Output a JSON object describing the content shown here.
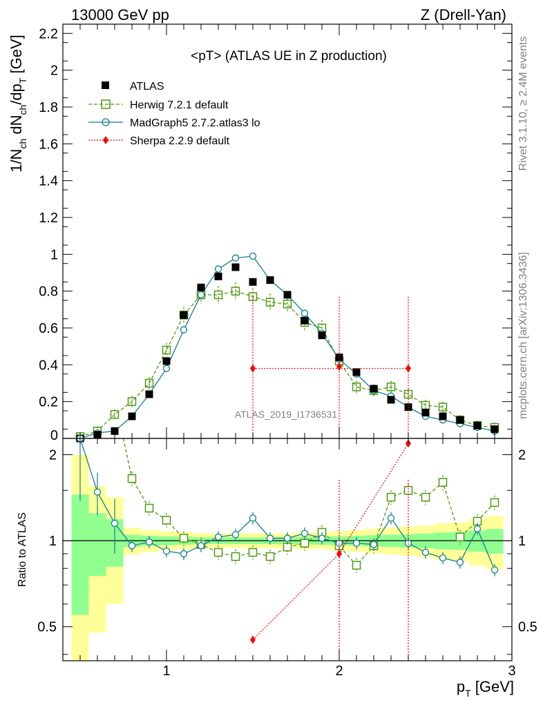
{
  "header": {
    "left": "13000 GeV pp",
    "right": "Z (Drell-Yan)"
  },
  "side": {
    "rivet": "Rivet 3.1.10, ≥ 2.4M events",
    "source": "mcplots.cern.ch [arXiv:1306.3436]"
  },
  "watermark": "ATLAS_2019_I1736531",
  "colors": {
    "atlas": "#000000",
    "herwig": "#4c9a0e",
    "madgraph": "#0f7f8f",
    "sherpa": "#ff0000",
    "band_inner": "#90ff90",
    "band_outer": "#ffff99"
  },
  "chart_data": [
    {
      "panel": "main",
      "type": "scatter",
      "title": "<pT> (ATLAS UE in Z production)",
      "ylabel": "1/N_ch dN_ch/dp_T [GeV]",
      "xlim": [
        0.4,
        3.0
      ],
      "ylim": [
        0,
        2.25
      ],
      "yticks": [
        "0",
        "0.2",
        "0.4",
        "0.6",
        "0.8",
        "1",
        "1.2",
        "1.4",
        "1.6",
        "1.8",
        "2",
        "2.2"
      ],
      "legend": [
        "ATLAS",
        "Herwig 7.2.1 default",
        "MadGraph5 2.7.2.atlas3 lo",
        "Sherpa 2.2.9 default"
      ],
      "series": [
        {
          "name": "ATLAS",
          "x": [
            0.5,
            0.6,
            0.7,
            0.8,
            0.9,
            1.0,
            1.1,
            1.2,
            1.3,
            1.4,
            1.5,
            1.6,
            1.7,
            1.8,
            1.9,
            2.0,
            2.1,
            2.2,
            2.3,
            2.4,
            2.5,
            2.6,
            2.7,
            2.8,
            2.9
          ],
          "y": [
            0.0,
            0.02,
            0.04,
            0.12,
            0.24,
            0.42,
            0.67,
            0.82,
            0.88,
            0.93,
            0.85,
            0.86,
            0.78,
            0.64,
            0.56,
            0.44,
            0.36,
            0.27,
            0.21,
            0.17,
            0.14,
            0.12,
            0.1,
            0.07,
            0.05
          ]
        },
        {
          "name": "Herwig 7.2.1 default",
          "x": [
            0.5,
            0.6,
            0.7,
            0.8,
            0.9,
            1.0,
            1.1,
            1.2,
            1.3,
            1.4,
            1.5,
            1.6,
            1.7,
            1.8,
            1.9,
            2.0,
            2.1,
            2.2,
            2.3,
            2.4,
            2.5,
            2.6,
            2.7,
            2.8,
            2.9
          ],
          "y": [
            0.01,
            0.04,
            0.13,
            0.2,
            0.3,
            0.48,
            0.67,
            0.78,
            0.78,
            0.8,
            0.77,
            0.74,
            0.73,
            0.63,
            0.6,
            0.42,
            0.28,
            0.26,
            0.28,
            0.24,
            0.18,
            0.17,
            0.1,
            0.07,
            0.06
          ]
        },
        {
          "name": "MadGraph5 2.7.2.atlas3 lo",
          "x": [
            0.5,
            0.6,
            0.7,
            0.8,
            0.9,
            1.0,
            1.1,
            1.2,
            1.3,
            1.4,
            1.5,
            1.6,
            1.7,
            1.8,
            1.9,
            2.0,
            2.1,
            2.2,
            2.3,
            2.4,
            2.5,
            2.6,
            2.7,
            2.8,
            2.9
          ],
          "y": [
            0.0,
            0.03,
            0.04,
            0.12,
            0.24,
            0.38,
            0.59,
            0.78,
            0.92,
            0.98,
            0.99,
            0.86,
            0.78,
            0.68,
            0.57,
            0.43,
            0.35,
            0.26,
            0.23,
            0.17,
            0.12,
            0.1,
            0.08,
            0.06,
            0.04
          ]
        },
        {
          "name": "Sherpa 2.2.9 default",
          "x": [
            1.5,
            2.0,
            2.4
          ],
          "y": [
            0.38,
            0.39,
            0.38
          ],
          "xerr": [
            0.5,
            0.4,
            0.4
          ]
        }
      ]
    },
    {
      "panel": "ratio",
      "type": "line",
      "ylabel": "Ratio to ATLAS",
      "xlabel": "p_T [GeV]",
      "xlim": [
        0.4,
        3.0
      ],
      "ylim": [
        0.38,
        2.28
      ],
      "log_y": true,
      "xticks": [
        "1",
        "2",
        "3"
      ],
      "yticks": [
        "0.5",
        "1",
        "2"
      ],
      "series": [
        {
          "name": "Herwig 7.2.1 default",
          "x": [
            0.8,
            0.9,
            1.0,
            1.1,
            1.2,
            1.3,
            1.4,
            1.5,
            1.6,
            1.7,
            1.8,
            1.9,
            2.0,
            2.1,
            2.2,
            2.3,
            2.4,
            2.5,
            2.6,
            2.7,
            2.8,
            2.9
          ],
          "y": [
            1.65,
            1.3,
            1.18,
            1.02,
            0.97,
            0.91,
            0.88,
            0.91,
            0.88,
            0.95,
            0.98,
            1.07,
            0.96,
            0.82,
            0.96,
            1.42,
            1.5,
            1.42,
            1.6,
            1.03,
            1.17,
            1.36
          ]
        },
        {
          "name": "MadGraph5 2.7.2.atlas3 lo",
          "x": [
            0.5,
            0.6,
            0.7,
            0.8,
            0.9,
            1.0,
            1.1,
            1.2,
            1.3,
            1.4,
            1.5,
            1.6,
            1.7,
            1.8,
            1.9,
            2.0,
            2.1,
            2.2,
            2.3,
            2.4,
            2.5,
            2.6,
            2.7,
            2.8,
            2.9
          ],
          "y": [
            2.28,
            1.48,
            1.15,
            0.96,
            0.99,
            0.92,
            0.9,
            0.96,
            1.03,
            1.05,
            1.2,
            1.02,
            1.02,
            1.06,
            1.02,
            0.98,
            0.98,
            0.97,
            1.2,
            0.98,
            0.91,
            0.87,
            0.84,
            1.1,
            0.79
          ]
        },
        {
          "name": "Sherpa 2.2.9 default",
          "x": [
            1.5,
            2.0,
            2.4
          ],
          "y": [
            0.45,
            0.9,
            2.19
          ]
        }
      ]
    }
  ]
}
